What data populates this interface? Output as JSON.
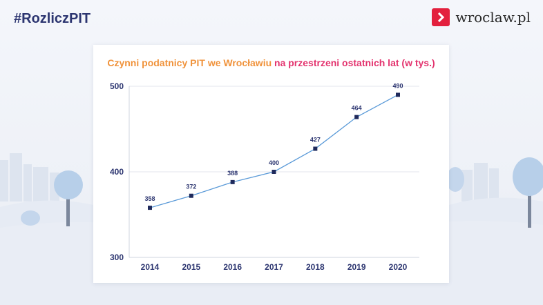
{
  "header": {
    "hashtag": "#RozliczPIT",
    "logo_text": "wroclaw.pl",
    "logo_icon": "chevron-right-icon"
  },
  "colors": {
    "brand_red": "#e3203d",
    "title_orange": "#f0923a",
    "title_pink": "#e3336e",
    "line": "#5a9ad8",
    "marker": "#1f2a5c",
    "text": "#2c3570"
  },
  "chart_data": {
    "type": "line",
    "title_part1": "Czynni podatnicy PIT we Wrocławiu",
    "title_part2": "na przestrzeni ostatnich lat (w tys.)",
    "categories": [
      "2014",
      "2015",
      "2016",
      "2017",
      "2018",
      "2019",
      "2020"
    ],
    "values": [
      358,
      372,
      388,
      400,
      427,
      464,
      490
    ],
    "yticks": [
      300,
      400,
      500
    ],
    "ylim": [
      300,
      500
    ],
    "xlabel": "",
    "ylabel": "",
    "grid": true,
    "legend": "none"
  }
}
